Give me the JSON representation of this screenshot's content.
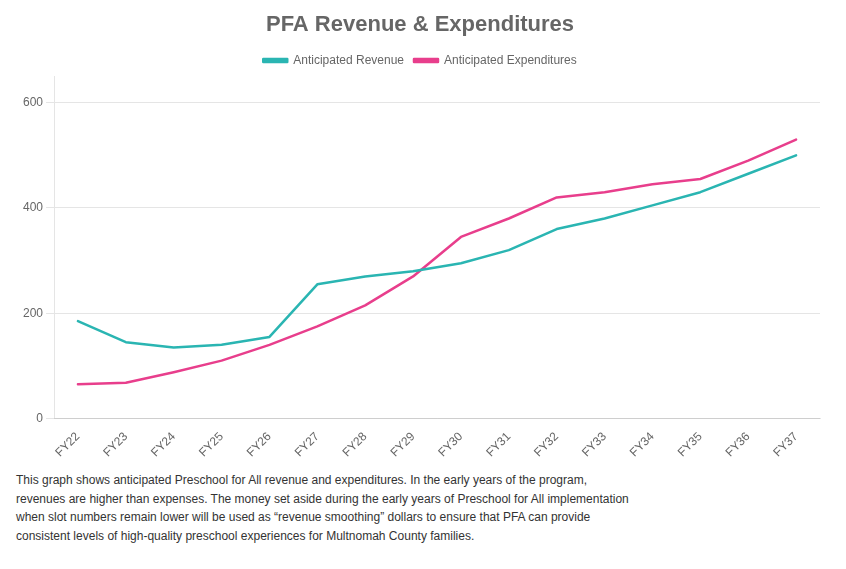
{
  "chart_data": {
    "type": "line",
    "title": "PFA Revenue & Expenditures",
    "categories": [
      "FY22",
      "FY23",
      "FY24",
      "FY25",
      "FY26",
      "FY27",
      "FY28",
      "FY29",
      "FY30",
      "FY31",
      "FY32",
      "FY33",
      "FY34",
      "FY35",
      "FY36",
      "FY37"
    ],
    "series": [
      {
        "name": "Anticipated Revenue",
        "color": "#2ab5b2",
        "values": [
          185,
          145,
          135,
          140,
          155,
          255,
          270,
          280,
          295,
          320,
          360,
          380,
          405,
          430,
          465,
          500
        ]
      },
      {
        "name": "Anticipated Expenditures",
        "color": "#e83e8c",
        "values": [
          65,
          68,
          88,
          110,
          140,
          175,
          215,
          270,
          345,
          380,
          420,
          430,
          445,
          455,
          490,
          530
        ]
      }
    ],
    "ylim": [
      0,
      650
    ],
    "yticks": [
      0,
      200,
      400,
      600
    ],
    "grid": true,
    "legend": "top",
    "annotation": "This graph shows anticipated Preschool for All revenue and expenditures. In the early years of the program,\nrevenues are higher than expenses. The money set aside during the early years of Preschool for All implementation\nwhen slot numbers remain lower will be used as “revenue smoothing” dollars to ensure that PFA can provide\nconsistent levels of high-quality preschool experiences for Multnomah County families."
  }
}
